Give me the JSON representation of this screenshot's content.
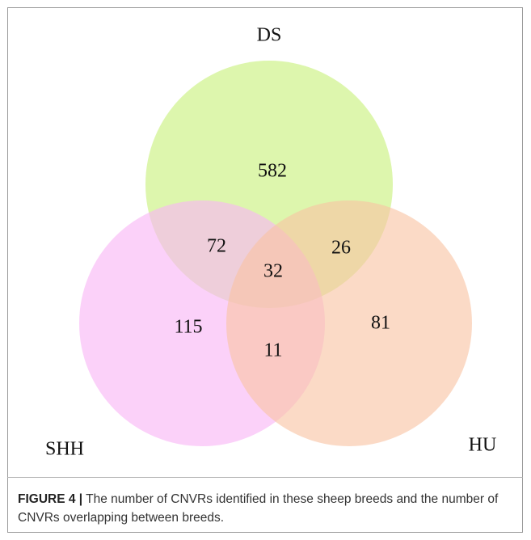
{
  "chart_data": {
    "type": "venn",
    "sets": [
      {
        "name": "DS",
        "color": "#c8f07a"
      },
      {
        "name": "SHH",
        "color": "#f8b4f6"
      },
      {
        "name": "HU",
        "color": "#f9c3a3"
      }
    ],
    "regions": [
      {
        "sets": [
          "DS"
        ],
        "value": 582
      },
      {
        "sets": [
          "DS",
          "SHH"
        ],
        "value": 72
      },
      {
        "sets": [
          "DS",
          "HU"
        ],
        "value": 26
      },
      {
        "sets": [
          "DS",
          "SHH",
          "HU"
        ],
        "value": 32
      },
      {
        "sets": [
          "SHH"
        ],
        "value": 115
      },
      {
        "sets": [
          "HU"
        ],
        "value": 81
      },
      {
        "sets": [
          "SHH",
          "HU"
        ],
        "value": 11
      }
    ]
  },
  "caption": {
    "label": "FIGURE 4 |",
    "text": "The number of CNVRs identified in these sheep breeds and the number of CNVRs overlapping between breeds."
  }
}
